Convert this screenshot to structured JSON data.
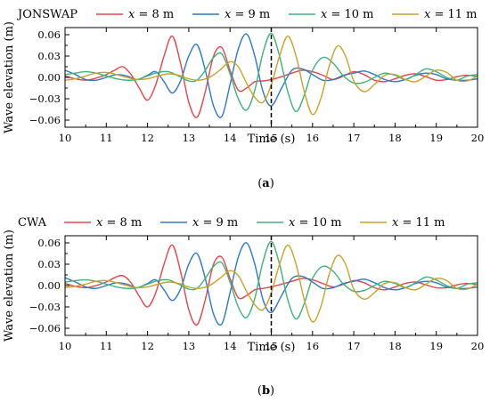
{
  "chart_data": [
    {
      "type": "line",
      "panel_label": "JONSWAP",
      "caption_letter": "a",
      "xlabel": "Time (s)",
      "ylabel": "Wave elevation (m)",
      "xlim": [
        10,
        20
      ],
      "ylim": [
        -0.07,
        0.07
      ],
      "xticks": [
        10,
        11,
        12,
        13,
        14,
        15,
        16,
        17,
        18,
        19,
        20
      ],
      "yticks": [
        -0.06,
        -0.03,
        0.0,
        0.03,
        0.06
      ],
      "ytick_labels": [
        "−0.06",
        "−0.03",
        "0.00",
        "0.03",
        "0.06"
      ],
      "grid": false,
      "legend_position": "top",
      "vline": {
        "x": 15,
        "style": "dashed",
        "color": "#000000"
      },
      "series": [
        {
          "name_var": "x",
          "name_eq": " = 8 m",
          "color": "#e8434a",
          "x": [
            10.0,
            10.25,
            10.5,
            10.75,
            11.0,
            11.2,
            11.4,
            11.6,
            11.8,
            12.0,
            12.2,
            12.4,
            12.6,
            12.8,
            13.0,
            13.2,
            13.4,
            13.6,
            13.8,
            14.0,
            14.2,
            14.4,
            14.6,
            14.8,
            15.0,
            15.25,
            15.5,
            15.75,
            16.0,
            16.25,
            16.5,
            16.75,
            17.0,
            17.25,
            17.5,
            17.75,
            18.0,
            18.25,
            18.5,
            18.75,
            19.0,
            19.25,
            19.5,
            19.75,
            20.0
          ],
          "y": [
            0.002,
            -0.002,
            -0.004,
            -0.001,
            0.004,
            0.01,
            0.015,
            0.004,
            -0.015,
            -0.032,
            -0.01,
            0.03,
            0.058,
            0.02,
            -0.035,
            -0.056,
            -0.02,
            0.03,
            0.042,
            0.01,
            -0.018,
            -0.015,
            -0.006,
            -0.005,
            -0.003,
            0.001,
            0.006,
            0.01,
            0.008,
            0.003,
            -0.003,
            0.002,
            0.008,
            0.004,
            -0.004,
            -0.006,
            -0.002,
            0.003,
            0.005,
            0.001,
            -0.004,
            -0.003,
            0.001,
            0.003,
            0.001
          ]
        },
        {
          "name_var": "x",
          "name_eq": " = 9 m",
          "color": "#2e78c9",
          "x": [
            10.0,
            10.25,
            10.5,
            10.75,
            11.0,
            11.25,
            11.5,
            11.75,
            12.0,
            12.2,
            12.4,
            12.6,
            12.8,
            13.0,
            13.2,
            13.4,
            13.6,
            13.8,
            14.0,
            14.2,
            14.4,
            14.6,
            14.8,
            15.0,
            15.25,
            15.5,
            15.75,
            16.0,
            16.25,
            16.5,
            16.75,
            17.0,
            17.25,
            17.5,
            17.75,
            18.0,
            18.25,
            18.5,
            18.75,
            19.0,
            19.25,
            19.5,
            19.75,
            20.0
          ],
          "y": [
            0.01,
            0.004,
            -0.003,
            -0.004,
            0.0,
            0.004,
            0.002,
            -0.003,
            0.003,
            0.008,
            -0.006,
            -0.022,
            -0.005,
            0.03,
            0.046,
            0.01,
            -0.04,
            -0.055,
            -0.01,
            0.04,
            0.061,
            0.03,
            -0.02,
            -0.04,
            -0.015,
            0.01,
            0.012,
            0.004,
            -0.004,
            -0.003,
            0.003,
            0.006,
            0.009,
            0.004,
            -0.003,
            -0.006,
            -0.003,
            0.003,
            0.006,
            0.004,
            -0.002,
            -0.004,
            -0.004,
            -0.002
          ]
        },
        {
          "name_var": "x",
          "name_eq": " = 10 m",
          "color": "#3db37b",
          "x": [
            10.0,
            10.25,
            10.5,
            10.75,
            11.0,
            11.25,
            11.5,
            11.75,
            12.0,
            12.25,
            12.5,
            12.75,
            13.0,
            13.2,
            13.4,
            13.6,
            13.8,
            14.0,
            14.2,
            14.4,
            14.6,
            14.8,
            15.0,
            15.2,
            15.4,
            15.6,
            15.8,
            16.0,
            16.25,
            16.5,
            16.75,
            17.0,
            17.25,
            17.5,
            17.75,
            18.0,
            18.25,
            18.5,
            18.75,
            19.0,
            19.25,
            19.5,
            19.75,
            20.0
          ],
          "y": [
            0.004,
            0.006,
            0.008,
            0.006,
            0.002,
            -0.002,
            -0.004,
            -0.003,
            0.002,
            0.007,
            0.008,
            0.002,
            -0.005,
            -0.004,
            0.01,
            0.028,
            0.033,
            0.005,
            -0.03,
            -0.046,
            -0.018,
            0.035,
            0.062,
            0.03,
            -0.02,
            -0.048,
            -0.025,
            0.01,
            0.028,
            0.02,
            0.002,
            -0.008,
            -0.007,
            0.0,
            0.006,
            0.003,
            -0.003,
            0.004,
            0.012,
            0.008,
            0.0,
            -0.004,
            0.002,
            0.004
          ]
        },
        {
          "name_var": "x",
          "name_eq": " = 11 m",
          "color": "#c9a227",
          "x": [
            10.0,
            10.25,
            10.5,
            10.75,
            11.0,
            11.25,
            11.5,
            11.75,
            12.0,
            12.25,
            12.5,
            12.75,
            13.0,
            13.25,
            13.5,
            13.75,
            14.0,
            14.2,
            14.4,
            14.6,
            14.8,
            15.0,
            15.2,
            15.4,
            15.6,
            15.8,
            16.0,
            16.2,
            16.4,
            16.6,
            16.8,
            17.0,
            17.25,
            17.5,
            17.75,
            18.0,
            18.25,
            18.5,
            18.75,
            19.0,
            19.25,
            19.5,
            19.75,
            20.0
          ],
          "y": [
            -0.004,
            -0.002,
            0.002,
            0.006,
            0.007,
            0.004,
            0.0,
            -0.003,
            -0.002,
            0.002,
            0.005,
            0.003,
            -0.002,
            -0.004,
            0.0,
            0.01,
            0.022,
            0.015,
            -0.008,
            -0.028,
            -0.035,
            -0.01,
            0.03,
            0.058,
            0.03,
            -0.02,
            -0.052,
            -0.03,
            0.015,
            0.044,
            0.03,
            -0.005,
            -0.02,
            -0.01,
            0.003,
            0.004,
            -0.003,
            -0.006,
            0.002,
            0.01,
            0.007,
            -0.004,
            -0.005,
            0.002
          ]
        }
      ]
    },
    {
      "type": "line",
      "panel_label": "CWA",
      "caption_letter": "b",
      "xlabel": "Time (s)",
      "ylabel": "Wave elevation (m)",
      "xlim": [
        10,
        20
      ],
      "ylim": [
        -0.07,
        0.07
      ],
      "xticks": [
        10,
        11,
        12,
        13,
        14,
        15,
        16,
        17,
        18,
        19,
        20
      ],
      "yticks": [
        -0.06,
        -0.03,
        0.0,
        0.03,
        0.06
      ],
      "ytick_labels": [
        "−0.06",
        "−0.03",
        "0.00",
        "0.03",
        "0.06"
      ],
      "grid": false,
      "legend_position": "top",
      "vline": {
        "x": 15,
        "style": "dashed",
        "color": "#000000"
      },
      "series": [
        {
          "name_var": "x",
          "name_eq": " = 8 m",
          "color": "#e8434a",
          "x": [
            10.0,
            10.25,
            10.5,
            10.75,
            11.0,
            11.2,
            11.4,
            11.6,
            11.8,
            12.0,
            12.2,
            12.4,
            12.6,
            12.8,
            13.0,
            13.2,
            13.4,
            13.6,
            13.8,
            14.0,
            14.2,
            14.4,
            14.6,
            14.8,
            15.0,
            15.25,
            15.5,
            15.75,
            16.0,
            16.25,
            16.5,
            16.75,
            17.0,
            17.25,
            17.5,
            17.75,
            18.0,
            18.25,
            18.5,
            18.75,
            19.0,
            19.25,
            19.5,
            19.75,
            20.0
          ],
          "y": [
            0.003,
            -0.001,
            -0.003,
            0.0,
            0.005,
            0.011,
            0.014,
            0.004,
            -0.015,
            -0.03,
            -0.01,
            0.03,
            0.057,
            0.02,
            -0.034,
            -0.055,
            -0.02,
            0.03,
            0.04,
            0.01,
            -0.017,
            -0.014,
            -0.006,
            -0.004,
            -0.002,
            0.002,
            0.006,
            0.01,
            0.008,
            0.003,
            -0.002,
            0.002,
            0.007,
            0.004,
            -0.003,
            -0.006,
            -0.002,
            0.003,
            0.005,
            0.001,
            -0.003,
            -0.003,
            0.001,
            0.003,
            0.001
          ]
        },
        {
          "name_var": "x",
          "name_eq": " = 9 m",
          "color": "#2e78c9",
          "x": [
            10.0,
            10.25,
            10.5,
            10.75,
            11.0,
            11.25,
            11.5,
            11.75,
            12.0,
            12.2,
            12.4,
            12.6,
            12.8,
            13.0,
            13.2,
            13.4,
            13.6,
            13.8,
            14.0,
            14.2,
            14.4,
            14.6,
            14.8,
            15.0,
            15.25,
            15.5,
            15.75,
            16.0,
            16.25,
            16.5,
            16.75,
            17.0,
            17.25,
            17.5,
            17.75,
            18.0,
            18.25,
            18.5,
            18.75,
            19.0,
            19.25,
            19.5,
            19.75,
            20.0
          ],
          "y": [
            0.011,
            0.005,
            -0.002,
            -0.004,
            0.0,
            0.004,
            0.002,
            -0.003,
            0.003,
            0.008,
            -0.006,
            -0.021,
            -0.005,
            0.03,
            0.045,
            0.01,
            -0.04,
            -0.054,
            -0.01,
            0.04,
            0.06,
            0.03,
            -0.02,
            -0.038,
            -0.014,
            0.01,
            0.013,
            0.005,
            -0.004,
            -0.003,
            0.003,
            0.006,
            0.009,
            0.004,
            -0.003,
            -0.006,
            -0.003,
            0.003,
            0.006,
            0.004,
            -0.002,
            -0.004,
            -0.004,
            -0.002
          ]
        },
        {
          "name_var": "x",
          "name_eq": " = 10 m",
          "color": "#3db37b",
          "x": [
            10.0,
            10.25,
            10.5,
            10.75,
            11.0,
            11.25,
            11.5,
            11.75,
            12.0,
            12.25,
            12.5,
            12.75,
            13.0,
            13.2,
            13.4,
            13.6,
            13.8,
            14.0,
            14.2,
            14.4,
            14.6,
            14.8,
            15.0,
            15.2,
            15.4,
            15.6,
            15.8,
            16.0,
            16.25,
            16.5,
            16.75,
            17.0,
            17.25,
            17.5,
            17.75,
            18.0,
            18.25,
            18.5,
            18.75,
            19.0,
            19.25,
            19.5,
            19.75,
            20.0
          ],
          "y": [
            0.005,
            0.007,
            0.008,
            0.006,
            0.002,
            -0.002,
            -0.004,
            -0.003,
            0.002,
            0.007,
            0.008,
            0.002,
            -0.005,
            -0.004,
            0.01,
            0.027,
            0.032,
            0.005,
            -0.03,
            -0.045,
            -0.018,
            0.034,
            0.062,
            0.03,
            -0.02,
            -0.047,
            -0.025,
            0.01,
            0.027,
            0.02,
            0.002,
            -0.008,
            -0.007,
            0.0,
            0.006,
            0.003,
            -0.003,
            0.004,
            0.012,
            0.008,
            0.0,
            -0.004,
            0.002,
            0.004
          ]
        },
        {
          "name_var": "x",
          "name_eq": " = 11 m",
          "color": "#c9a227",
          "x": [
            10.0,
            10.25,
            10.5,
            10.75,
            11.0,
            11.25,
            11.5,
            11.75,
            12.0,
            12.25,
            12.5,
            12.75,
            13.0,
            13.25,
            13.5,
            13.75,
            14.0,
            14.2,
            14.4,
            14.6,
            14.8,
            15.0,
            15.2,
            15.4,
            15.6,
            15.8,
            16.0,
            16.2,
            16.4,
            16.6,
            16.8,
            17.0,
            17.25,
            17.5,
            17.75,
            18.0,
            18.25,
            18.5,
            18.75,
            19.0,
            19.25,
            19.5,
            19.75,
            20.0
          ],
          "y": [
            -0.003,
            -0.001,
            0.002,
            0.006,
            0.007,
            0.004,
            0.0,
            -0.003,
            -0.002,
            0.002,
            0.005,
            0.003,
            -0.002,
            -0.004,
            0.0,
            0.01,
            0.021,
            0.014,
            -0.008,
            -0.027,
            -0.034,
            -0.01,
            0.03,
            0.057,
            0.03,
            -0.02,
            -0.051,
            -0.03,
            0.015,
            0.042,
            0.03,
            -0.005,
            -0.019,
            -0.01,
            0.003,
            0.004,
            -0.003,
            -0.006,
            0.002,
            0.01,
            0.007,
            -0.004,
            -0.005,
            0.002
          ]
        }
      ]
    }
  ]
}
